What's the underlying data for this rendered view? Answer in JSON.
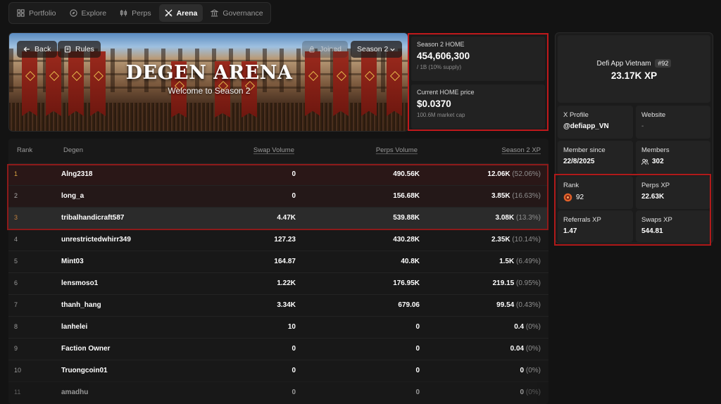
{
  "nav": {
    "tabs": [
      {
        "label": "Portfolio",
        "icon": "grid-icon",
        "active": false
      },
      {
        "label": "Explore",
        "icon": "compass-icon",
        "active": false
      },
      {
        "label": "Perps",
        "icon": "candlestick-icon",
        "active": false
      },
      {
        "label": "Arena",
        "icon": "crossed-swords-icon",
        "active": true
      },
      {
        "label": "Governance",
        "icon": "institution-icon",
        "active": false
      }
    ]
  },
  "hero": {
    "back_label": "Back",
    "rules_label": "Rules",
    "joined_label": "Joined",
    "season_select": "Season 2",
    "title": "DEGEN ARENA",
    "subtitle": "Welcome to Season 2"
  },
  "stats": {
    "home": {
      "label": "Season 2 HOME",
      "value": "454,606,300",
      "sub": "/ 1B (10% supply)"
    },
    "price": {
      "label": "Current HOME price",
      "value": "$0.0370",
      "sub": "100.6M market cap"
    }
  },
  "table": {
    "headers": {
      "rank": "Rank",
      "degen": "Degen",
      "swap": "Swap Volume",
      "perps": "Perps Volume",
      "xp": "Season 2 XP"
    },
    "rows": [
      {
        "rank": "1",
        "name": "Alng2318",
        "swap": "0",
        "perps": "490.56K",
        "xp": "12.06K",
        "pct": "(52.06%)",
        "rank_color": "#d9a441",
        "bg": "#2a1717"
      },
      {
        "rank": "2",
        "name": "long_a",
        "swap": "0",
        "perps": "156.68K",
        "xp": "3.85K",
        "pct": "(16.63%)",
        "rank_color": "#a9a9a9",
        "bg": "#241818"
      },
      {
        "rank": "3",
        "name": "tribalhandicraft587",
        "swap": "4.47K",
        "perps": "539.88K",
        "xp": "3.08K",
        "pct": "(13.3%)",
        "rank_color": "#c1803f",
        "bg": "#2b2b2b"
      },
      {
        "rank": "4",
        "name": "unrestrictedwhirr349",
        "swap": "127.23",
        "perps": "430.28K",
        "xp": "2.35K",
        "pct": "(10.14%)",
        "rank_color": "#9a9a9a",
        "bg": "#181818"
      },
      {
        "rank": "5",
        "name": "Mint03",
        "swap": "164.87",
        "perps": "40.8K",
        "xp": "1.5K",
        "pct": "(6.49%)",
        "rank_color": "#9a9a9a",
        "bg": "#181818"
      },
      {
        "rank": "6",
        "name": "lensmoso1",
        "swap": "1.22K",
        "perps": "176.95K",
        "xp": "219.15",
        "pct": "(0.95%)",
        "rank_color": "#9a9a9a",
        "bg": "#181818"
      },
      {
        "rank": "7",
        "name": "thanh_hang",
        "swap": "3.34K",
        "perps": "679.06",
        "xp": "99.54",
        "pct": "(0.43%)",
        "rank_color": "#9a9a9a",
        "bg": "#181818"
      },
      {
        "rank": "8",
        "name": "lanhelei",
        "swap": "10",
        "perps": "0",
        "xp": "0.4",
        "pct": "(0%)",
        "rank_color": "#9a9a9a",
        "bg": "#181818"
      },
      {
        "rank": "9",
        "name": "Faction Owner",
        "swap": "0",
        "perps": "0",
        "xp": "0.04",
        "pct": "(0%)",
        "rank_color": "#9a9a9a",
        "bg": "#181818"
      },
      {
        "rank": "10",
        "name": "Truongcoin01",
        "swap": "0",
        "perps": "0",
        "xp": "0",
        "pct": "(0%)",
        "rank_color": "#9a9a9a",
        "bg": "#181818"
      },
      {
        "rank": "11",
        "name": "amadhu",
        "swap": "0",
        "perps": "0",
        "xp": "0",
        "pct": "(0%)",
        "rank_color": "#9a9a9a",
        "bg": "#181818"
      }
    ]
  },
  "profile": {
    "name": "Defi App Vietnam",
    "rank_badge": "#92",
    "xp": "23.17K XP",
    "x_profile_label": "X Profile",
    "x_profile_value": "@defiapp_VN",
    "website_label": "Website",
    "website_value": "-",
    "member_since_label": "Member since",
    "member_since_value": "22/8/2025",
    "members_label": "Members",
    "members_value": "302",
    "rank_label": "Rank",
    "rank_value": "92",
    "perps_xp_label": "Perps XP",
    "perps_xp_value": "22.63K",
    "referrals_xp_label": "Referrals XP",
    "referrals_xp_value": "1.47",
    "swaps_xp_label": "Swaps XP",
    "swaps_xp_value": "544.81"
  },
  "colors": {
    "highlight": "#c0191c",
    "accent_orange": "#e0612a"
  }
}
